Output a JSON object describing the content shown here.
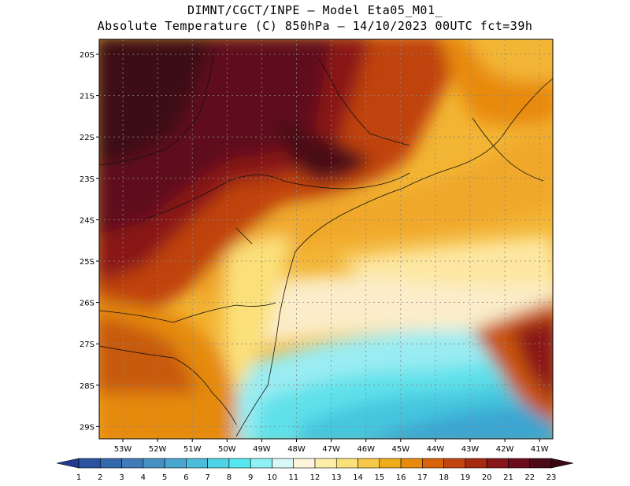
{
  "header": {
    "line1": "DIMNT/CGCT/INPE —  Model Eta05_M01_",
    "line2": "Absolute Temperature (C) 850hPa —  14/10/2023 00UTC fct=39h"
  },
  "map": {
    "lat_labels": [
      "20S",
      "21S",
      "22S",
      "23S",
      "24S",
      "25S",
      "26S",
      "27S",
      "28S",
      "29S"
    ],
    "lon_labels": [
      "53W",
      "52W",
      "51W",
      "50W",
      "49W",
      "48W",
      "47W",
      "46W",
      "45W",
      "44W",
      "43W",
      "42W",
      "41W"
    ]
  },
  "colorbar": {
    "labels": [
      "1",
      "2",
      "3",
      "4",
      "5",
      "6",
      "7",
      "8",
      "9",
      "10",
      "11",
      "12",
      "13",
      "14",
      "15",
      "16",
      "17",
      "18",
      "19",
      "20",
      "21",
      "22",
      "23"
    ],
    "colors": [
      "#1f3b8f",
      "#2a52a0",
      "#3567ad",
      "#3f7bb8",
      "#4690c4",
      "#4aa6d0",
      "#4cbddc",
      "#4fd3e6",
      "#56e8ee",
      "#8ef2f4",
      "#d8f7f7",
      "#fdf6dd",
      "#fdeeaa",
      "#fbe17a",
      "#f7c948",
      "#f0ac1a",
      "#e88a0c",
      "#d8630a",
      "#c2450f",
      "#a52a12",
      "#87151a",
      "#6b0c1c",
      "#4a0a16",
      "#3a0812"
    ]
  }
}
